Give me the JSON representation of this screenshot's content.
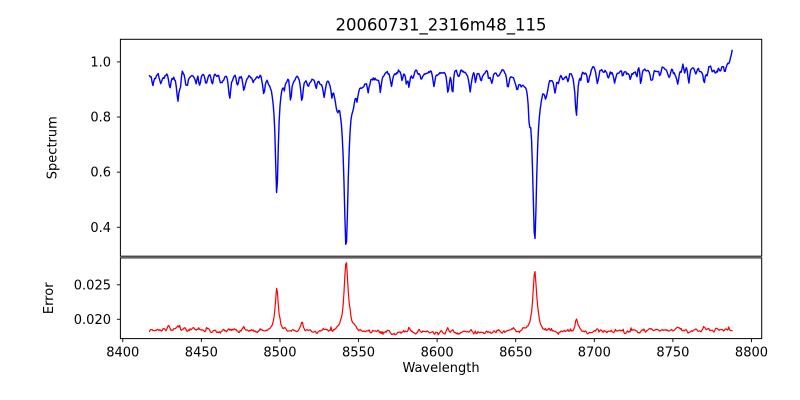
{
  "chart_data": {
    "type": "line",
    "title": "20060731_2316m48_115",
    "xlabel": "Wavelength",
    "xlim": [
      8398.5,
      8806.5
    ],
    "xticks": [
      8400,
      8450,
      8500,
      8550,
      8600,
      8650,
      8700,
      8750,
      8800
    ],
    "xtick_labels": [
      "8400",
      "8450",
      "8500",
      "8550",
      "8600",
      "8650",
      "8700",
      "8750",
      "8800"
    ],
    "x_range": [
      8417,
      8788
    ],
    "sample_step": 0.55,
    "grid": false,
    "legend": "none",
    "panels": [
      {
        "name": "spectrum",
        "ylabel": "Spectrum",
        "color": "#0000ff",
        "line_width": 1.4,
        "ylim": [
          0.295,
          1.082
        ],
        "yticks": [
          0.4,
          0.6,
          0.8,
          1.0
        ],
        "ytick_labels": [
          "0.4",
          "0.6",
          "0.8",
          "1.0"
        ],
        "continuum": {
          "base": 0.958,
          "slope_per_angstrom": 7.7e-05,
          "ref": 8417
        },
        "noise_sigma": 0.012,
        "end_upturn": {
          "start": 8780,
          "span": 8,
          "height": 0.05
        },
        "major_lines": [
          {
            "center": 8498.0,
            "core_depth": 0.4,
            "core_width": 1.1,
            "wing_depth": 0.045,
            "wing_width": 5,
            "min_flux": 0.53
          },
          {
            "center": 8542.1,
            "core_depth": 0.55,
            "core_width": 1.6,
            "wing_depth": 0.08,
            "wing_width": 9,
            "min_flux": 0.33
          },
          {
            "center": 8662.1,
            "core_depth": 0.55,
            "core_width": 1.5,
            "wing_depth": 0.07,
            "wing_width": 8,
            "min_flux": 0.35
          },
          {
            "center": 8688.6,
            "core_depth": 0.17,
            "core_width": 0.9,
            "wing_depth": 0.01,
            "wing_width": 3,
            "min_flux": 0.8
          }
        ],
        "minor_lines": [
          [
            8419,
            0.05
          ],
          [
            8424,
            0.035
          ],
          [
            8430,
            0.04
          ],
          [
            8435,
            0.1
          ],
          [
            8441,
            0.03
          ],
          [
            8449,
            0.055
          ],
          [
            8453,
            0.03
          ],
          [
            8457,
            0.035
          ],
          [
            8462,
            0.03
          ],
          [
            8468,
            0.105
          ],
          [
            8473,
            0.03
          ],
          [
            8477,
            0.05
          ],
          [
            8483,
            0.03
          ],
          [
            8490,
            0.04
          ],
          [
            8507,
            0.045
          ],
          [
            8514,
            0.09
          ],
          [
            8518,
            0.03
          ],
          [
            8523,
            0.035
          ],
          [
            8528,
            0.055
          ],
          [
            8536,
            0.03
          ],
          [
            8549,
            0.035
          ],
          [
            8556,
            0.045
          ],
          [
            8564,
            0.03
          ],
          [
            8571,
            0.04
          ],
          [
            8578,
            0.03
          ],
          [
            8582,
            0.055
          ],
          [
            8590,
            0.03
          ],
          [
            8598,
            0.045
          ],
          [
            8607,
            0.075
          ],
          [
            8614,
            0.03
          ],
          [
            8621,
            0.065
          ],
          [
            8628,
            0.035
          ],
          [
            8635,
            0.04
          ],
          [
            8645,
            0.05
          ],
          [
            8651,
            0.03
          ],
          [
            8669,
            0.03
          ],
          [
            8675,
            0.05
          ],
          [
            8680,
            0.035
          ],
          [
            8696,
            0.035
          ],
          [
            8702,
            0.05
          ],
          [
            8709,
            0.03
          ],
          [
            8713,
            0.04
          ],
          [
            8718,
            0.03
          ],
          [
            8723,
            0.045
          ],
          [
            8730,
            0.03
          ],
          [
            8736,
            0.05
          ],
          [
            8742,
            0.035
          ],
          [
            8747,
            0.03
          ],
          [
            8753,
            0.06
          ],
          [
            8760,
            0.035
          ],
          [
            8765,
            0.03
          ],
          [
            8770,
            0.05
          ],
          [
            8777,
            0.035
          ],
          [
            8783,
            0.03
          ]
        ]
      },
      {
        "name": "error",
        "ylabel": "Error",
        "color": "#ff0000",
        "line_width": 1.2,
        "ylim": [
          0.0172,
          0.0289
        ],
        "yticks": [
          0.02,
          0.025
        ],
        "ytick_labels": [
          "0.020",
          "0.025"
        ],
        "baseline": 0.0181,
        "edge_rise": 0.0004,
        "edge_center": 8602,
        "edge_halfspan": 190,
        "noise_sigma": 0.0002,
        "peaks": [
          [
            8498.0,
            0.0062,
            1.2
          ],
          [
            8542.1,
            0.01,
            1.6
          ],
          [
            8662.1,
            0.0088,
            1.5
          ],
          [
            8429,
            0.0005,
            0.9
          ],
          [
            8435,
            0.0008,
            0.9
          ],
          [
            8445,
            0.0004,
            0.9
          ],
          [
            8477,
            0.0007,
            0.9
          ],
          [
            8514,
            0.0012,
            1.0
          ],
          [
            8528,
            0.0004,
            0.9
          ],
          [
            8582,
            0.0004,
            0.9
          ],
          [
            8607,
            0.0005,
            0.9
          ],
          [
            8621,
            0.0005,
            0.9
          ],
          [
            8648,
            0.0004,
            0.9
          ],
          [
            8688.6,
            0.002,
            0.9
          ],
          [
            8702,
            0.0004,
            0.9
          ],
          [
            8736,
            0.0004,
            0.9
          ],
          [
            8753,
            0.0005,
            0.9
          ],
          [
            8770,
            0.0004,
            0.9
          ]
        ]
      }
    ]
  }
}
